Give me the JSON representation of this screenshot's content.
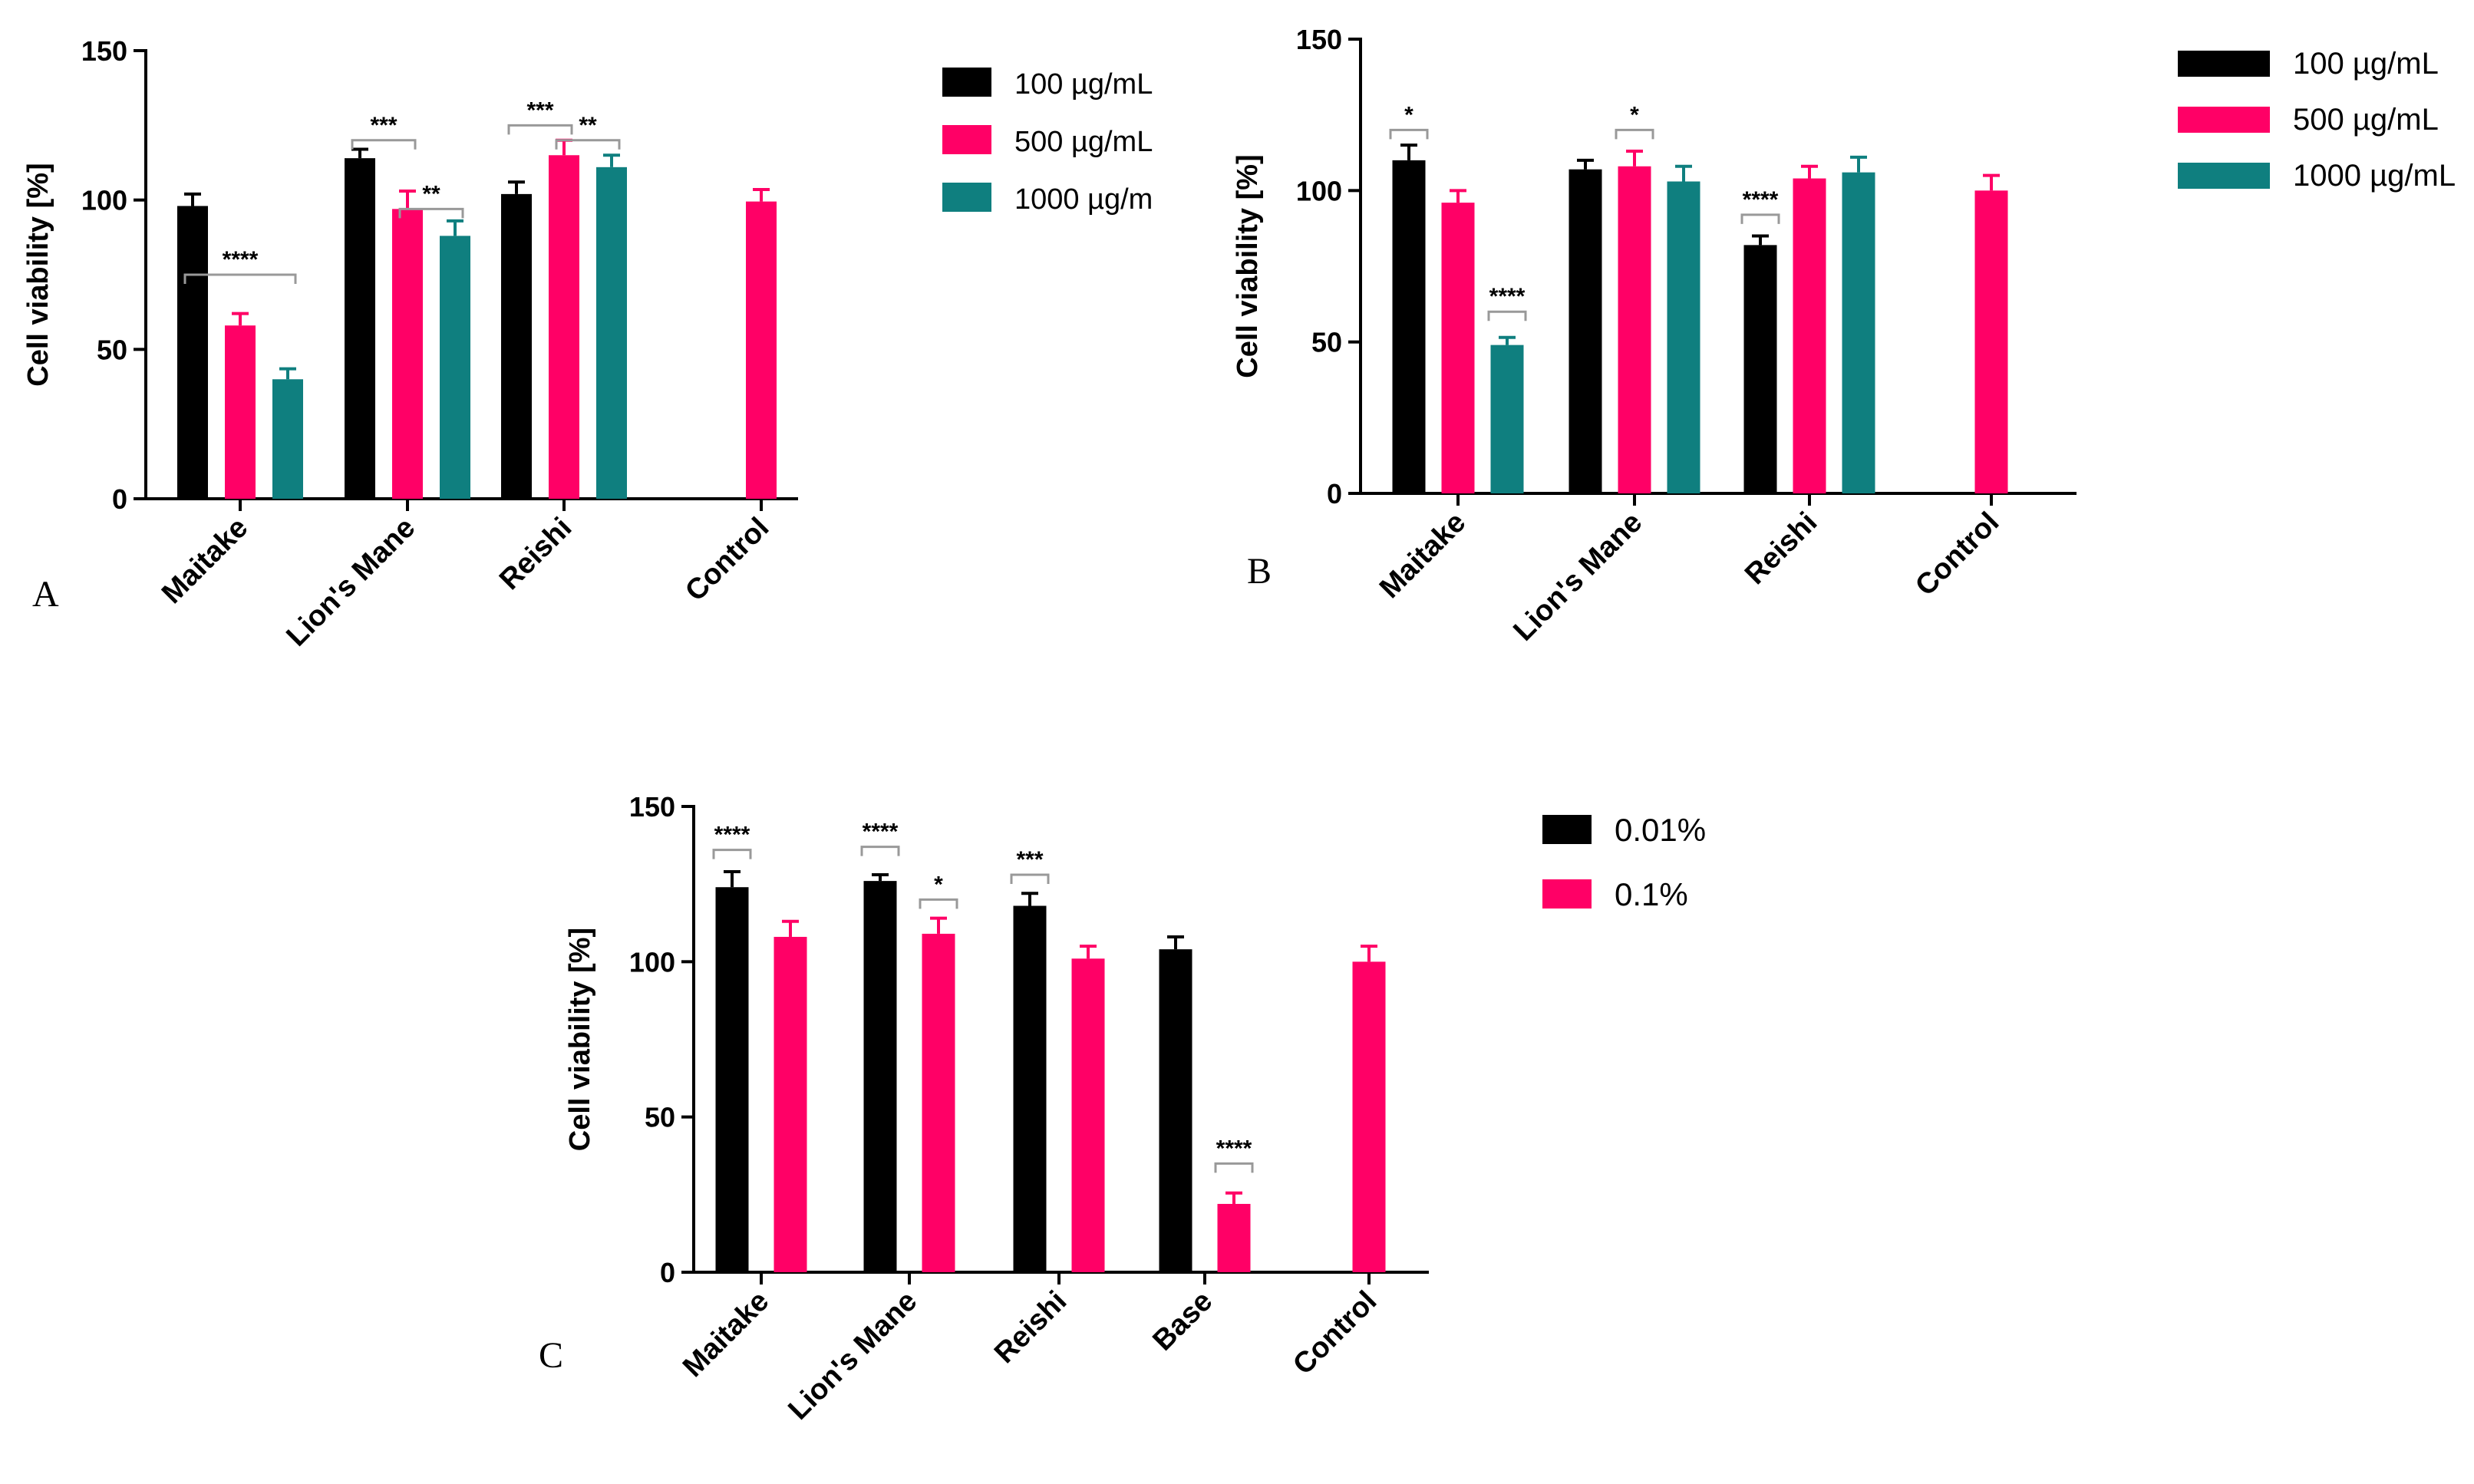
{
  "chart_data": [
    {
      "panel": "A",
      "type": "bar",
      "xlabel": "",
      "ylabel": "Cell viability [%]",
      "ylim": [
        0,
        150
      ],
      "yticks": [
        0,
        50,
        100,
        150
      ],
      "grid": false,
      "legend_position": "right",
      "categories": [
        "Maitake",
        "Lion's Mane",
        "Reishi",
        "Control"
      ],
      "series": [
        {
          "name": "100 µg/mL",
          "color": "#000000",
          "values": [
            98,
            114,
            102,
            null
          ],
          "errors": [
            4,
            3,
            4,
            null
          ]
        },
        {
          "name": "500 µg/mL",
          "color": "#ff0066",
          "values": [
            58,
            97,
            115,
            99.5
          ],
          "errors": [
            4,
            6,
            5,
            4
          ]
        },
        {
          "name": "1000 µg/m",
          "color": "#0f7f7f",
          "values": [
            40,
            88,
            111,
            null
          ],
          "errors": [
            3.5,
            5,
            4,
            null
          ]
        }
      ],
      "annotations": [
        {
          "label": "****",
          "category": "Maitake",
          "from_series": 0,
          "to_series": 2,
          "y": 75
        },
        {
          "label": "***",
          "category": "Lion's Mane",
          "from_series": 0,
          "to_series": 1,
          "y": 120
        },
        {
          "label": "**",
          "category": "Lion's Mane",
          "from_series": 1,
          "to_series": 2,
          "y": 97
        },
        {
          "label": "***",
          "category": "Reishi",
          "from_series": 0,
          "to_series": 1,
          "y": 125
        },
        {
          "label": "**",
          "category": "Reishi",
          "from_series": 1,
          "to_series": 2,
          "y": 120
        }
      ]
    },
    {
      "panel": "B",
      "type": "bar",
      "xlabel": "",
      "ylabel": "Cell viability [%]",
      "ylim": [
        0,
        150
      ],
      "yticks": [
        0,
        50,
        100,
        150
      ],
      "grid": false,
      "legend_position": "right",
      "categories": [
        "Maitake",
        "Lion's Mane",
        "Reishi",
        "Control"
      ],
      "series": [
        {
          "name": "100 µg/mL",
          "color": "#000000",
          "values": [
            110,
            107,
            82,
            null
          ],
          "errors": [
            5,
            3,
            3,
            null
          ]
        },
        {
          "name": "500 µg/mL",
          "color": "#ff0066",
          "values": [
            96,
            108,
            104,
            100
          ],
          "errors": [
            4,
            5,
            4,
            5
          ]
        },
        {
          "name": "1000 µg/mL",
          "color": "#0f7f7f",
          "values": [
            49,
            103,
            106,
            null
          ],
          "errors": [
            2.5,
            5,
            5,
            null
          ]
        }
      ],
      "annotations": [
        {
          "label": "*",
          "category": "Maitake",
          "from_series": 0,
          "to_series": 0,
          "y": 120
        },
        {
          "label": "****",
          "category": "Maitake",
          "from_series": 2,
          "to_series": 2,
          "y": 60
        },
        {
          "label": "*",
          "category": "Lion's Mane",
          "from_series": 1,
          "to_series": 1,
          "y": 120
        },
        {
          "label": "****",
          "category": "Reishi",
          "from_series": 0,
          "to_series": 0,
          "y": 92
        }
      ]
    },
    {
      "panel": "C",
      "type": "bar",
      "xlabel": "",
      "ylabel": "Cell viability [%]",
      "ylim": [
        0,
        150
      ],
      "yticks": [
        0,
        50,
        100,
        150
      ],
      "grid": false,
      "legend_position": "right",
      "categories": [
        "Maitake",
        "Lion's Mane",
        "Reishi",
        "Base",
        "Control"
      ],
      "series": [
        {
          "name": "0.01%",
          "color": "#000000",
          "values": [
            124,
            126,
            118,
            104,
            null
          ],
          "errors": [
            5,
            2,
            4,
            4,
            null
          ]
        },
        {
          "name": "0.1%",
          "color": "#ff0066",
          "values": [
            108,
            109,
            101,
            22,
            100
          ],
          "errors": [
            5,
            5,
            4,
            3.5,
            5
          ]
        }
      ],
      "annotations": [
        {
          "label": "****",
          "category": "Maitake",
          "from_series": 0,
          "to_series": 0,
          "y": 136
        },
        {
          "label": "****",
          "category": "Lion's Mane",
          "from_series": 0,
          "to_series": 0,
          "y": 137
        },
        {
          "label": "*",
          "category": "Lion's Mane",
          "from_series": 1,
          "to_series": 1,
          "y": 120
        },
        {
          "label": "***",
          "category": "Reishi",
          "from_series": 0,
          "to_series": 0,
          "y": 128
        },
        {
          "label": "****",
          "category": "Base",
          "from_series": 1,
          "to_series": 1,
          "y": 35
        }
      ]
    }
  ]
}
